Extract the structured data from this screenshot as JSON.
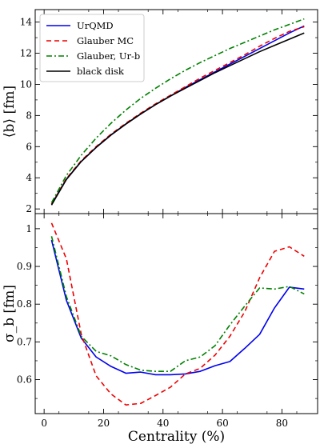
{
  "chart_data": [
    {
      "type": "line",
      "title": "",
      "xlabel": "",
      "ylabel": "⟨b⟩ [fm]",
      "xlim": [
        -3,
        92
      ],
      "ylim": [
        1.7,
        14.8
      ],
      "xticks": [
        0,
        20,
        40,
        60,
        80
      ],
      "yticks": [
        2,
        4,
        6,
        8,
        10,
        12,
        14
      ],
      "show_x_tick_labels": false,
      "grid": false,
      "legend": "top-left",
      "series": [
        {
          "name": "UrQMD",
          "color": "#0000ee",
          "dash": "solid",
          "x": [
            2.5,
            7.5,
            12.5,
            17.5,
            22.5,
            27.5,
            32.5,
            37.5,
            42.5,
            47.5,
            52.5,
            57.5,
            62.5,
            67.5,
            72.5,
            77.5,
            82.5,
            87.5
          ],
          "y": [
            2.3,
            3.9,
            5.05,
            5.95,
            6.75,
            7.45,
            8.1,
            8.7,
            9.25,
            9.8,
            10.3,
            10.8,
            11.3,
            11.8,
            12.3,
            12.8,
            13.3,
            13.75
          ]
        },
        {
          "name": "Glauber MC",
          "color": "#ee0000",
          "dash": "6,4",
          "x": [
            2.5,
            7.5,
            12.5,
            17.5,
            22.5,
            27.5,
            32.5,
            37.5,
            42.5,
            47.5,
            52.5,
            57.5,
            62.5,
            67.5,
            72.5,
            77.5,
            82.5,
            87.5
          ],
          "y": [
            2.3,
            3.95,
            5.1,
            6.0,
            6.8,
            7.5,
            8.15,
            8.75,
            9.3,
            9.85,
            10.4,
            10.9,
            11.4,
            11.9,
            12.45,
            12.95,
            13.4,
            13.7
          ]
        },
        {
          "name": "Glauber, Ur-b",
          "color": "#008000",
          "dash": "7,3,2,3",
          "x": [
            2.5,
            7.5,
            12.5,
            17.5,
            22.5,
            27.5,
            32.5,
            37.5,
            42.5,
            47.5,
            52.5,
            57.5,
            62.5,
            67.5,
            72.5,
            77.5,
            82.5,
            87.5
          ],
          "y": [
            2.4,
            4.15,
            5.45,
            6.55,
            7.5,
            8.35,
            9.1,
            9.75,
            10.35,
            10.9,
            11.4,
            11.85,
            12.3,
            12.7,
            13.1,
            13.5,
            13.85,
            14.2
          ]
        },
        {
          "name": "black disk",
          "color": "#000000",
          "dash": "solid",
          "x": [
            2.5,
            7.5,
            12.5,
            17.5,
            22.5,
            27.5,
            32.5,
            37.5,
            42.5,
            47.5,
            52.5,
            57.5,
            62.5,
            67.5,
            72.5,
            77.5,
            82.5,
            87.5
          ],
          "y": [
            2.25,
            3.9,
            5.05,
            5.95,
            6.75,
            7.45,
            8.1,
            8.7,
            9.25,
            9.75,
            10.25,
            10.75,
            11.2,
            11.65,
            12.1,
            12.5,
            12.9,
            13.3
          ]
        }
      ]
    },
    {
      "type": "line",
      "title": "",
      "xlabel": "Centrality (%)",
      "ylabel": "σ_b [fm]",
      "xlim": [
        -3,
        92
      ],
      "ylim": [
        0.51,
        1.04
      ],
      "xticks": [
        0,
        20,
        40,
        60,
        80
      ],
      "yticks": [
        0.6,
        0.7,
        0.8,
        0.9,
        1.0
      ],
      "show_x_tick_labels": true,
      "grid": false,
      "series": [
        {
          "name": "UrQMD",
          "color": "#0000ee",
          "dash": "solid",
          "x": [
            2.5,
            7.5,
            12.5,
            17.5,
            22.5,
            27.5,
            32.5,
            37.5,
            42.5,
            47.5,
            52.5,
            57.5,
            62.5,
            67.5,
            72.5,
            77.5,
            82.5,
            87.5
          ],
          "y": [
            0.97,
            0.81,
            0.71,
            0.66,
            0.635,
            0.617,
            0.62,
            0.613,
            0.613,
            0.615,
            0.622,
            0.637,
            0.648,
            0.683,
            0.72,
            0.79,
            0.845,
            0.84
          ]
        },
        {
          "name": "Glauber MC",
          "color": "#ee0000",
          "dash": "6,4",
          "x": [
            2.5,
            7.5,
            12.5,
            17.5,
            22.5,
            27.5,
            32.5,
            37.5,
            42.5,
            47.5,
            52.5,
            57.5,
            62.5,
            67.5,
            72.5,
            77.5,
            82.5,
            87.5
          ],
          "y": [
            1.015,
            0.92,
            0.72,
            0.61,
            0.562,
            0.533,
            0.537,
            0.558,
            0.58,
            0.615,
            0.63,
            0.665,
            0.715,
            0.78,
            0.87,
            0.94,
            0.952,
            0.927
          ]
        },
        {
          "name": "Glauber, Ur-b",
          "color": "#008000",
          "dash": "7,3,2,3",
          "x": [
            2.5,
            7.5,
            12.5,
            17.5,
            22.5,
            27.5,
            32.5,
            37.5,
            42.5,
            47.5,
            52.5,
            57.5,
            62.5,
            67.5,
            72.5,
            77.5,
            82.5,
            87.5
          ],
          "y": [
            0.98,
            0.82,
            0.715,
            0.675,
            0.663,
            0.64,
            0.625,
            0.622,
            0.622,
            0.65,
            0.66,
            0.69,
            0.745,
            0.795,
            0.843,
            0.84,
            0.847,
            0.827
          ]
        }
      ]
    }
  ]
}
